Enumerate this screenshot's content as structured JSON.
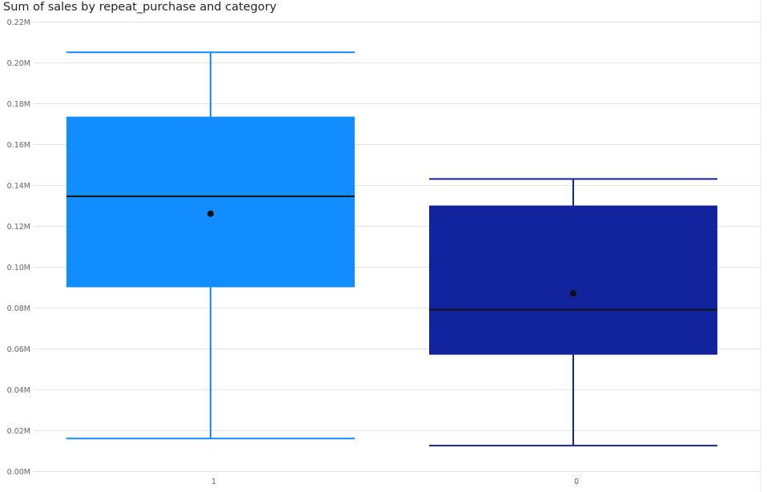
{
  "chart_data": {
    "type": "box",
    "title": "Sum of sales by repeat_purchase and category",
    "xlabel": "",
    "ylabel": "",
    "ylim": [
      0,
      0.22
    ],
    "y_unit_suffix": "M",
    "y_ticks": [
      0.0,
      0.02,
      0.04,
      0.06,
      0.08,
      0.1,
      0.12,
      0.14,
      0.16,
      0.18,
      0.2,
      0.22
    ],
    "y_tick_labels": [
      "0.00M",
      "0.02M",
      "0.04M",
      "0.06M",
      "0.08M",
      "0.10M",
      "0.12M",
      "0.14M",
      "0.16M",
      "0.18M",
      "0.20M",
      "0.22M"
    ],
    "grid": true,
    "categories": [
      "1",
      "0"
    ],
    "boxes": [
      {
        "category": "1",
        "min": 0.016,
        "q1": 0.09,
        "median": 0.1345,
        "q3": 0.1735,
        "max": 0.205,
        "mean": 0.126,
        "color": "#118DFF"
      },
      {
        "category": "0",
        "min": 0.0125,
        "q1": 0.057,
        "median": 0.079,
        "q3": 0.13,
        "max": 0.143,
        "mean": 0.087,
        "color": "#12239E"
      }
    ]
  }
}
